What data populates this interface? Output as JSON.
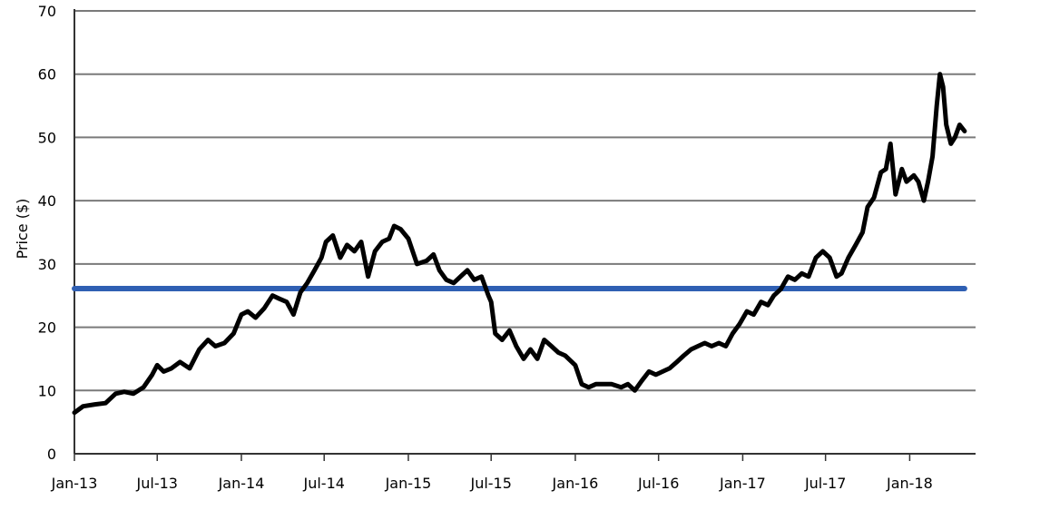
{
  "chart_data": {
    "type": "line",
    "title": "",
    "xlabel": "",
    "ylabel": "Price ($)",
    "ylim": [
      0,
      70
    ],
    "y_ticks": [
      "0",
      "10",
      "20",
      "30",
      "40",
      "50",
      "60",
      "70"
    ],
    "x_ticks": [
      "Jan-13",
      "Jul-13",
      "Jan-14",
      "Jul-14",
      "Jan-15",
      "Jul-15",
      "Jan-16",
      "Jul-16",
      "Jan-17",
      "Jul-17",
      "Jan-18"
    ],
    "x_range": [
      "2013-01-01",
      "2018-05-01"
    ],
    "grid": "horizontal",
    "legend": "none",
    "series": [
      {
        "color": "#000000",
        "points": [
          [
            "2013-01-01",
            6.5
          ],
          [
            "2013-01-20",
            7.5
          ],
          [
            "2013-02-15",
            7.8
          ],
          [
            "2013-03-10",
            8.0
          ],
          [
            "2013-04-01",
            9.5
          ],
          [
            "2013-04-20",
            9.8
          ],
          [
            "2013-05-10",
            9.5
          ],
          [
            "2013-06-01",
            10.5
          ],
          [
            "2013-06-20",
            12.5
          ],
          [
            "2013-07-01",
            14.0
          ],
          [
            "2013-07-15",
            13.0
          ],
          [
            "2013-08-01",
            13.5
          ],
          [
            "2013-08-20",
            14.5
          ],
          [
            "2013-09-10",
            13.5
          ],
          [
            "2013-10-01",
            16.5
          ],
          [
            "2013-10-20",
            18.0
          ],
          [
            "2013-11-05",
            17.0
          ],
          [
            "2013-11-25",
            17.5
          ],
          [
            "2013-12-15",
            19.0
          ],
          [
            "2014-01-01",
            22.0
          ],
          [
            "2014-01-15",
            22.5
          ],
          [
            "2014-02-01",
            21.5
          ],
          [
            "2014-02-20",
            23.0
          ],
          [
            "2014-03-10",
            25.0
          ],
          [
            "2014-03-25",
            24.5
          ],
          [
            "2014-04-10",
            24.0
          ],
          [
            "2014-04-25",
            22.0
          ],
          [
            "2014-05-10",
            25.5
          ],
          [
            "2014-05-25",
            27.0
          ],
          [
            "2014-06-10",
            29.0
          ],
          [
            "2014-06-25",
            31.0
          ],
          [
            "2014-07-05",
            33.5
          ],
          [
            "2014-07-20",
            34.5
          ],
          [
            "2014-08-05",
            31.0
          ],
          [
            "2014-08-20",
            33.0
          ],
          [
            "2014-09-05",
            32.0
          ],
          [
            "2014-09-20",
            33.5
          ],
          [
            "2014-10-05",
            28.0
          ],
          [
            "2014-10-20",
            32.0
          ],
          [
            "2014-11-05",
            33.5
          ],
          [
            "2014-11-20",
            34.0
          ],
          [
            "2014-12-01",
            36.0
          ],
          [
            "2014-12-15",
            35.5
          ],
          [
            "2015-01-01",
            34.0
          ],
          [
            "2015-01-20",
            30.0
          ],
          [
            "2015-02-10",
            30.5
          ],
          [
            "2015-02-25",
            31.5
          ],
          [
            "2015-03-10",
            29.0
          ],
          [
            "2015-03-25",
            27.5
          ],
          [
            "2015-04-10",
            27.0
          ],
          [
            "2015-04-25",
            28.0
          ],
          [
            "2015-05-10",
            29.0
          ],
          [
            "2015-05-25",
            27.5
          ],
          [
            "2015-06-10",
            28.0
          ],
          [
            "2015-06-25",
            25.0
          ],
          [
            "2015-07-01",
            24.0
          ],
          [
            "2015-07-10",
            19.0
          ],
          [
            "2015-07-25",
            18.0
          ],
          [
            "2015-08-10",
            19.5
          ],
          [
            "2015-08-25",
            17.0
          ],
          [
            "2015-09-10",
            15.0
          ],
          [
            "2015-09-25",
            16.5
          ],
          [
            "2015-10-10",
            15.0
          ],
          [
            "2015-10-25",
            18.0
          ],
          [
            "2015-11-10",
            17.0
          ],
          [
            "2015-11-25",
            16.0
          ],
          [
            "2015-12-10",
            15.5
          ],
          [
            "2016-01-01",
            14.0
          ],
          [
            "2016-01-15",
            11.0
          ],
          [
            "2016-01-30",
            10.5
          ],
          [
            "2016-02-15",
            11.0
          ],
          [
            "2016-03-01",
            11.0
          ],
          [
            "2016-03-20",
            11.0
          ],
          [
            "2016-04-10",
            10.5
          ],
          [
            "2016-04-25",
            11.0
          ],
          [
            "2016-05-10",
            10.0
          ],
          [
            "2016-05-25",
            11.5
          ],
          [
            "2016-06-10",
            13.0
          ],
          [
            "2016-06-25",
            12.5
          ],
          [
            "2016-07-10",
            13.0
          ],
          [
            "2016-07-25",
            13.5
          ],
          [
            "2016-08-10",
            14.5
          ],
          [
            "2016-08-25",
            15.5
          ],
          [
            "2016-09-10",
            16.5
          ],
          [
            "2016-09-25",
            17.0
          ],
          [
            "2016-10-10",
            17.5
          ],
          [
            "2016-10-25",
            17.0
          ],
          [
            "2016-11-10",
            17.5
          ],
          [
            "2016-11-25",
            17.0
          ],
          [
            "2016-12-10",
            19.0
          ],
          [
            "2016-12-25",
            20.5
          ],
          [
            "2017-01-10",
            22.5
          ],
          [
            "2017-01-25",
            22.0
          ],
          [
            "2017-02-10",
            24.0
          ],
          [
            "2017-02-25",
            23.5
          ],
          [
            "2017-03-10",
            25.0
          ],
          [
            "2017-03-25",
            26.0
          ],
          [
            "2017-04-10",
            28.0
          ],
          [
            "2017-04-25",
            27.5
          ],
          [
            "2017-05-10",
            28.5
          ],
          [
            "2017-05-25",
            28.0
          ],
          [
            "2017-06-10",
            31.0
          ],
          [
            "2017-06-25",
            32.0
          ],
          [
            "2017-07-10",
            31.0
          ],
          [
            "2017-07-25",
            28.0
          ],
          [
            "2017-08-05",
            28.5
          ],
          [
            "2017-08-20",
            31.0
          ],
          [
            "2017-09-05",
            33.0
          ],
          [
            "2017-09-20",
            35.0
          ],
          [
            "2017-10-01",
            39.0
          ],
          [
            "2017-10-15",
            40.5
          ],
          [
            "2017-10-30",
            44.5
          ],
          [
            "2017-11-10",
            45.0
          ],
          [
            "2017-11-20",
            49.0
          ],
          [
            "2017-12-01",
            41.0
          ],
          [
            "2017-12-15",
            45.0
          ],
          [
            "2017-12-25",
            43.0
          ],
          [
            "2018-01-10",
            44.0
          ],
          [
            "2018-01-20",
            43.0
          ],
          [
            "2018-02-01",
            40.0
          ],
          [
            "2018-02-10",
            43.0
          ],
          [
            "2018-02-20",
            47.0
          ],
          [
            "2018-03-01",
            55.0
          ],
          [
            "2018-03-08",
            60.0
          ],
          [
            "2018-03-15",
            58.0
          ],
          [
            "2018-03-22",
            52.0
          ],
          [
            "2018-04-01",
            49.0
          ],
          [
            "2018-04-10",
            50.0
          ],
          [
            "2018-04-20",
            52.0
          ],
          [
            "2018-05-01",
            51.0
          ]
        ]
      },
      {
        "color": "#2f5fb3",
        "points": [
          [
            "2013-01-01",
            26.1
          ],
          [
            "2018-05-01",
            26.1
          ]
        ]
      }
    ]
  }
}
